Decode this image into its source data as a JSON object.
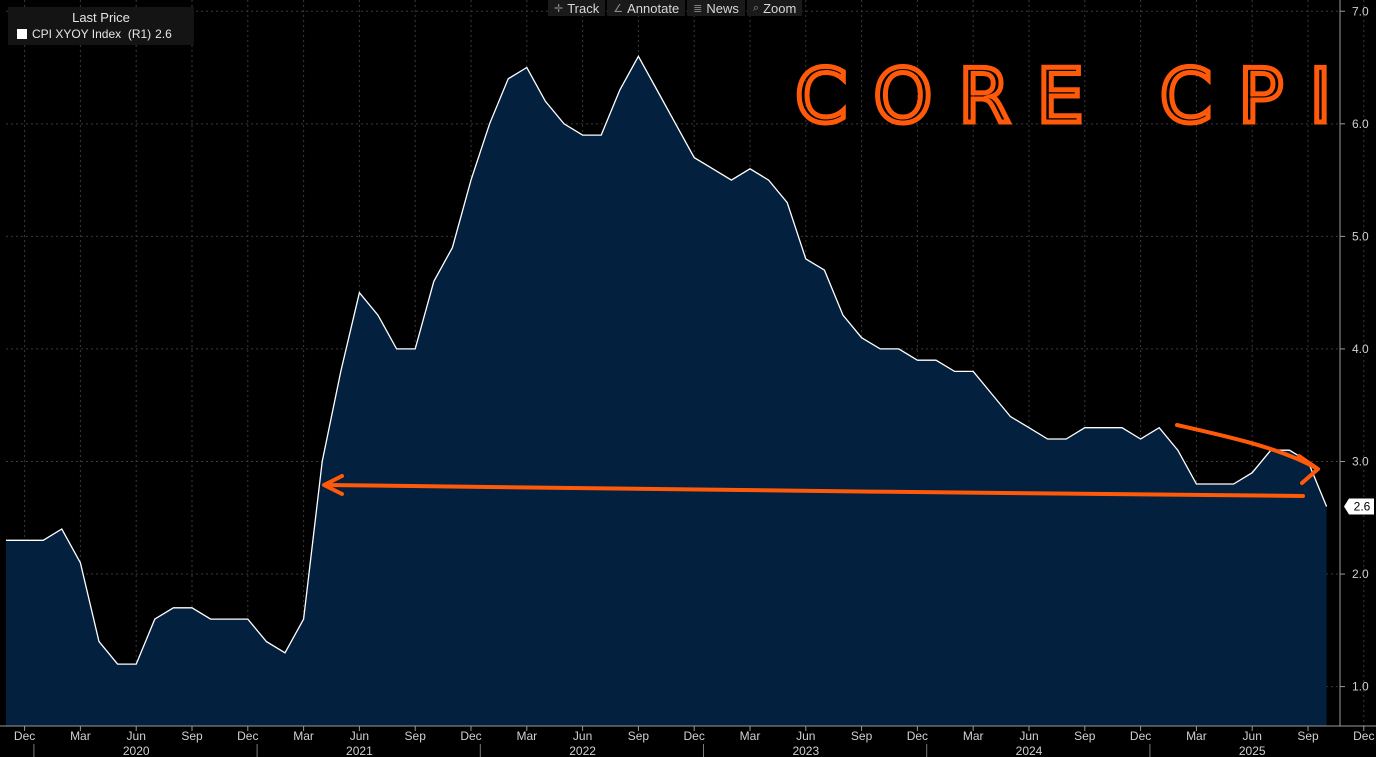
{
  "toolbar": {
    "items": [
      {
        "label": "Track",
        "icon": "crosshair-icon",
        "glyph": "✛"
      },
      {
        "label": "Annotate",
        "icon": "pencil-icon",
        "glyph": "∠"
      },
      {
        "label": "News",
        "icon": "news-icon",
        "glyph": "≣"
      },
      {
        "label": "Zoom",
        "icon": "magnifier-icon",
        "glyph": "⌕"
      }
    ]
  },
  "legend": {
    "header": "Last Price",
    "series_label": "CPI XYOY Index  (R1)",
    "series_value": "2.6"
  },
  "annotation": {
    "text": "CORE CPI",
    "color": "#ff5a0a"
  },
  "colors": {
    "background": "#000000",
    "area_fill": "#04203f",
    "line": "#ffffff",
    "grid": "#3a3a3a"
  },
  "chart_data": {
    "type": "area",
    "ylim": [
      0.65,
      7.1
    ],
    "yticks": [
      "7.0",
      "6.0",
      "5.0",
      "4.0",
      "3.0",
      "2.0",
      "1.0"
    ],
    "last_value_label": "2.6",
    "grid": true,
    "month_ticks": [
      "Dec",
      "Mar",
      "Jun",
      "Sep",
      "Dec",
      "Mar",
      "Jun",
      "Sep",
      "Dec",
      "Mar",
      "Jun",
      "Sep",
      "Dec",
      "Mar",
      "Jun",
      "Sep",
      "Dec",
      "Mar",
      "Jun",
      "Sep",
      "Dec",
      "Mar",
      "Jun",
      "Sep",
      "Dec"
    ],
    "month_tick_dates": [
      "2019-12",
      "2020-03",
      "2020-06",
      "2020-09",
      "2020-12",
      "2021-03",
      "2021-06",
      "2021-09",
      "2021-12",
      "2022-03",
      "2022-06",
      "2022-09",
      "2022-12",
      "2023-03",
      "2023-06",
      "2023-09",
      "2023-12",
      "2024-03",
      "2024-06",
      "2024-09",
      "2024-12",
      "2025-03",
      "2025-06",
      "2025-09",
      "2025-12"
    ],
    "year_labels": [
      "2020",
      "2021",
      "2022",
      "2023",
      "2024",
      "2025"
    ],
    "year_label_dates": [
      "2020-06",
      "2021-06",
      "2022-06",
      "2023-06",
      "2024-06",
      "2025-06"
    ],
    "series": [
      {
        "x": [
          "2019-11",
          "2019-12",
          "2020-01",
          "2020-02",
          "2020-03",
          "2020-04",
          "2020-05",
          "2020-06",
          "2020-07",
          "2020-08",
          "2020-09",
          "2020-10",
          "2020-11",
          "2020-12",
          "2021-01",
          "2021-02",
          "2021-03",
          "2021-04",
          "2021-05",
          "2021-06",
          "2021-07",
          "2021-08",
          "2021-09",
          "2021-10",
          "2021-11",
          "2021-12",
          "2022-01",
          "2022-02",
          "2022-03",
          "2022-04",
          "2022-05",
          "2022-06",
          "2022-07",
          "2022-08",
          "2022-09",
          "2022-10",
          "2022-11",
          "2022-12",
          "2023-01",
          "2023-02",
          "2023-03",
          "2023-04",
          "2023-05",
          "2023-06",
          "2023-07",
          "2023-08",
          "2023-09",
          "2023-10",
          "2023-11",
          "2023-12",
          "2024-01",
          "2024-02",
          "2024-03",
          "2024-04",
          "2024-05",
          "2024-06",
          "2024-07",
          "2024-08",
          "2024-09",
          "2024-10",
          "2024-11",
          "2024-12",
          "2025-01",
          "2025-02",
          "2025-03",
          "2025-04",
          "2025-05",
          "2025-06",
          "2025-07",
          "2025-08",
          "2025-09",
          "2025-10"
        ],
        "y": [
          2.3,
          2.3,
          2.3,
          2.4,
          2.1,
          1.4,
          1.2,
          1.2,
          1.6,
          1.7,
          1.7,
          1.6,
          1.6,
          1.6,
          1.4,
          1.3,
          1.6,
          3.0,
          3.8,
          4.5,
          4.3,
          4.0,
          4.0,
          4.6,
          4.9,
          5.5,
          6.0,
          6.4,
          6.5,
          6.2,
          6.0,
          5.9,
          5.9,
          6.3,
          6.6,
          6.3,
          6.0,
          5.7,
          5.6,
          5.5,
          5.6,
          5.5,
          5.3,
          4.8,
          4.7,
          4.3,
          4.1,
          4.0,
          4.0,
          3.9,
          3.9,
          3.8,
          3.8,
          3.6,
          3.4,
          3.3,
          3.2,
          3.2,
          3.3,
          3.3,
          3.3,
          3.2,
          3.3,
          3.1,
          2.8,
          2.8,
          2.8,
          2.9,
          3.1,
          3.1,
          3.0,
          2.6
        ]
      }
    ]
  }
}
